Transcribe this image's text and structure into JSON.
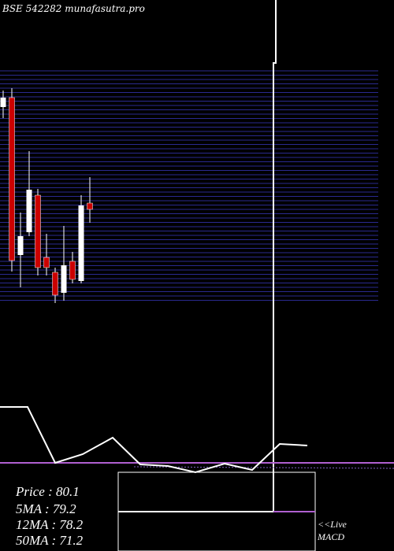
{
  "chart_data": {
    "type": "candlestick",
    "title": "BSE 542282 munafasutra.pro",
    "ylim": [
      50.95,
      120.87
    ],
    "up_color": "#ffffff",
    "down_color": "#cc0000",
    "open": [
      109.97,
      112.81,
      65.41,
      72.29,
      83.42,
      64.7,
      60.2,
      54.04,
      63.52,
      57.59,
      81.05
    ],
    "close": [
      112.81,
      63.75,
      71.1,
      85.08,
      61.62,
      61.62,
      53.33,
      62.33,
      58.07,
      80.34,
      79.16
    ],
    "high": [
      114.95,
      115.66,
      78.21,
      96.7,
      85.32,
      71.81,
      61.62,
      74.18,
      66.36,
      83.42,
      88.87
    ],
    "low": [
      106.65,
      60.44,
      55.7,
      71.1,
      59.25,
      59.25,
      50.95,
      51.67,
      56.88,
      56.88,
      75.13
    ]
  },
  "info": {
    "stats": [
      "Price   : 80.1",
      "5MA : 79.2",
      "12MA : 78.2",
      "50MA : 71.2"
    ],
    "live": "<<Live",
    "macd": "MACD"
  }
}
